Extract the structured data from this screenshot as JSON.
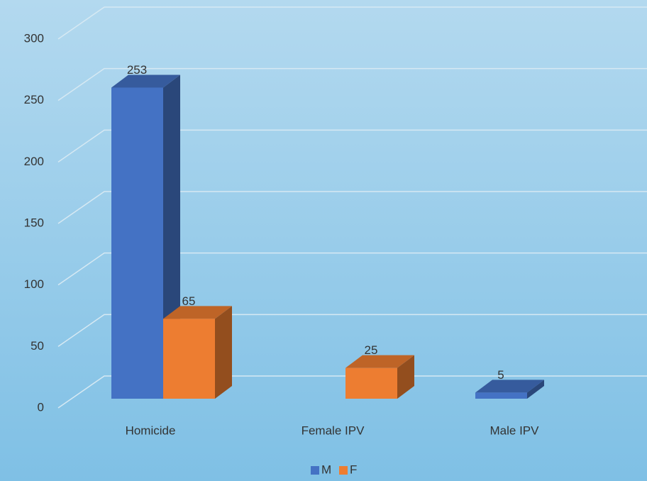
{
  "chart_data": {
    "type": "bar3d",
    "categories": [
      "Homicide",
      "Female IPV",
      "Male IPV"
    ],
    "series": [
      {
        "name": "M",
        "color": "#4472c4",
        "values": [
          253,
          null,
          5
        ]
      },
      {
        "name": "F",
        "color": "#ed7d31",
        "values": [
          65,
          25,
          null
        ]
      }
    ],
    "ylim": [
      0,
      300
    ],
    "yticks": [
      0,
      50,
      100,
      150,
      200,
      250,
      300
    ],
    "grid": true,
    "legend": "bottom"
  }
}
